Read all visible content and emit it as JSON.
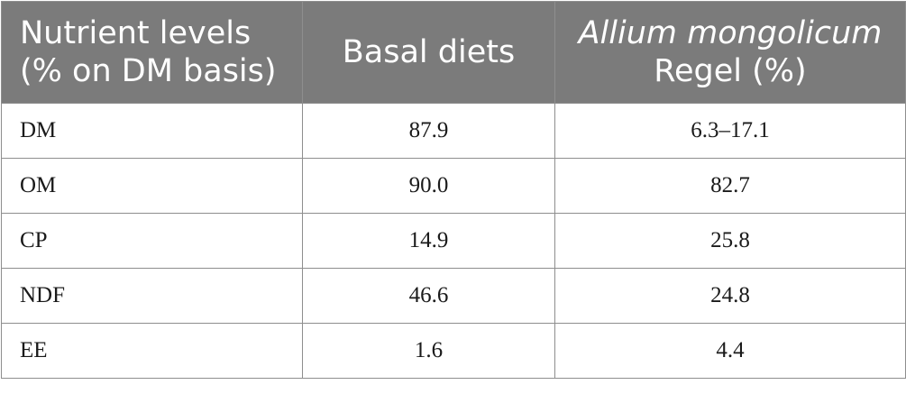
{
  "table": {
    "headers": {
      "col1": {
        "line1": "Nutrient levels",
        "line2": "(% on DM basis)"
      },
      "col2": {
        "line1": "Basal diets"
      },
      "col3": {
        "line1": "Allium mongolicum",
        "line2": "Regel (%)"
      }
    },
    "rows": [
      {
        "nutrient": "DM",
        "basal": "87.9",
        "allium": "6.3–17.1"
      },
      {
        "nutrient": "OM",
        "basal": "90.0",
        "allium": "82.7"
      },
      {
        "nutrient": "CP",
        "basal": "14.9",
        "allium": "25.8"
      },
      {
        "nutrient": "NDF",
        "basal": "46.6",
        "allium": "24.8"
      },
      {
        "nutrient": "EE",
        "basal": "1.6",
        "allium": "4.4"
      }
    ]
  }
}
